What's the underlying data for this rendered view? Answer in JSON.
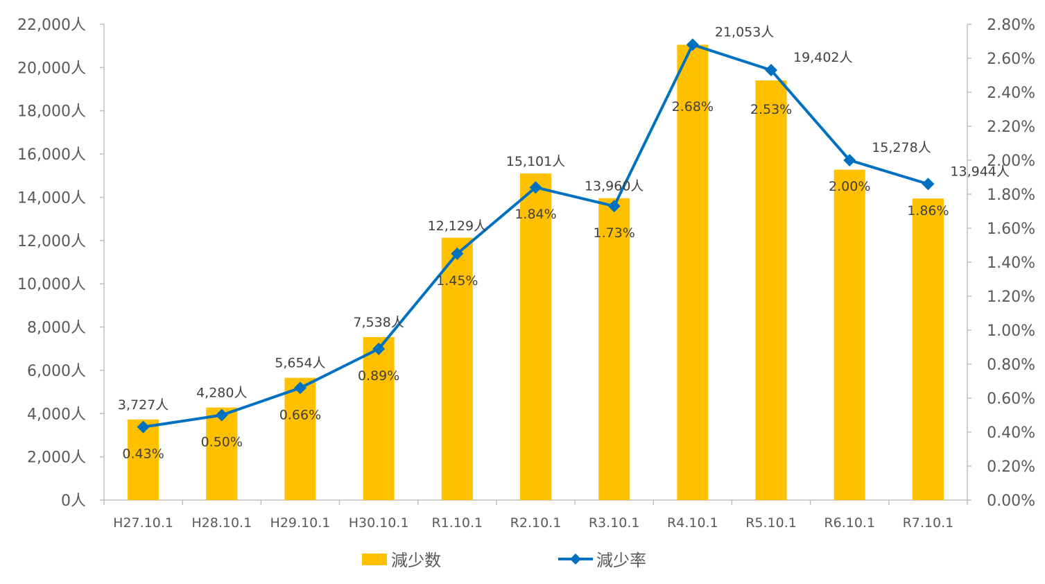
{
  "chart_data": {
    "type": "bar",
    "categories": [
      "H27.10.1",
      "H28.10.1",
      "H29.10.1",
      "H30.10.1",
      "R1.10.1",
      "R2.10.1",
      "R3.10.1",
      "R4.10.1",
      "R5.10.1",
      "R6.10.1",
      "R7.10.1"
    ],
    "series": [
      {
        "name": "減少数",
        "type": "bar",
        "axis": "left",
        "color": "#FFC000",
        "values": [
          3727,
          4280,
          5654,
          7538,
          12129,
          15101,
          13960,
          21053,
          19402,
          15278,
          13944
        ],
        "labels": [
          "3,727人",
          "4,280人",
          "5,654人",
          "7,538人",
          "12,129人",
          "15,101人",
          "13,960人",
          "21,053人",
          "19,402人",
          "15,278人",
          "13,944人"
        ]
      },
      {
        "name": "減少率",
        "type": "line",
        "axis": "right",
        "color": "#0070C0",
        "marker": "diamond",
        "values": [
          0.43,
          0.5,
          0.66,
          0.89,
          1.45,
          1.84,
          1.73,
          2.68,
          2.53,
          2.0,
          1.86
        ],
        "labels": [
          "0.43%",
          "0.50%",
          "0.66%",
          "0.89%",
          "1.45%",
          "1.84%",
          "1.73%",
          "2.68%",
          "2.53%",
          "2.00%",
          "1.86%"
        ]
      }
    ],
    "y_left": {
      "min": 0,
      "max": 22000,
      "step": 2000,
      "tick_labels": [
        "0人",
        "2,000人",
        "4,000人",
        "6,000人",
        "8,000人",
        "10,000人",
        "12,000人",
        "14,000人",
        "16,000人",
        "18,000人",
        "20,000人",
        "22,000人"
      ]
    },
    "y_right": {
      "min": 0,
      "max": 2.8,
      "step": 0.2,
      "tick_labels": [
        "0.00%",
        "0.20%",
        "0.40%",
        "0.60%",
        "0.80%",
        "1.00%",
        "1.20%",
        "1.40%",
        "1.60%",
        "1.80%",
        "2.00%",
        "2.20%",
        "2.40%",
        "2.60%",
        "2.80%"
      ]
    },
    "grid": false,
    "legend": {
      "position": "bottom",
      "items": [
        "減少数",
        "減少率"
      ]
    },
    "title": "",
    "xlabel": "",
    "ylabel": ""
  }
}
